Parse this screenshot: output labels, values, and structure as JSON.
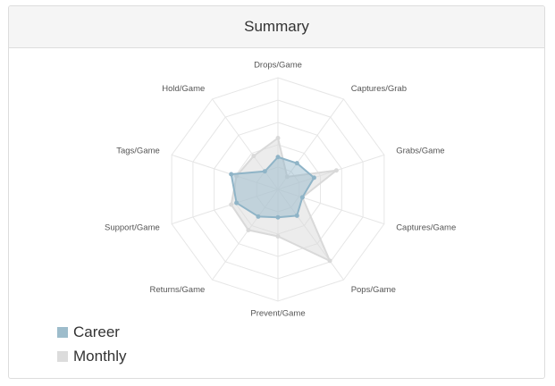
{
  "panel": {
    "title": "Summary"
  },
  "chart_data": {
    "type": "radar",
    "title": "",
    "axes": [
      "Drops/Game",
      "Captures/Grab",
      "Grabs/Game",
      "Captures/Game",
      "Pops/Game",
      "Prevent/Game",
      "Returns/Game",
      "Support/Game",
      "Tags/Game",
      "Hold/Game"
    ],
    "rlim": [
      0,
      1
    ],
    "grid": true,
    "legend_position": "bottom-left",
    "series": [
      {
        "name": "Career",
        "color": "#8fb4c7",
        "values": [
          0.29,
          0.29,
          0.34,
          0.23,
          0.29,
          0.25,
          0.3,
          0.39,
          0.44,
          0.2
        ]
      },
      {
        "name": "Monthly",
        "color": "#d9d9d9",
        "values": [
          0.46,
          0.14,
          0.55,
          0.23,
          0.79,
          0.42,
          0.45,
          0.44,
          0.39,
          0.37
        ]
      }
    ],
    "legend": [
      {
        "label": "Career",
        "color": "#9dbccb"
      },
      {
        "label": "Monthly",
        "color": "#dcdcdc"
      }
    ]
  }
}
